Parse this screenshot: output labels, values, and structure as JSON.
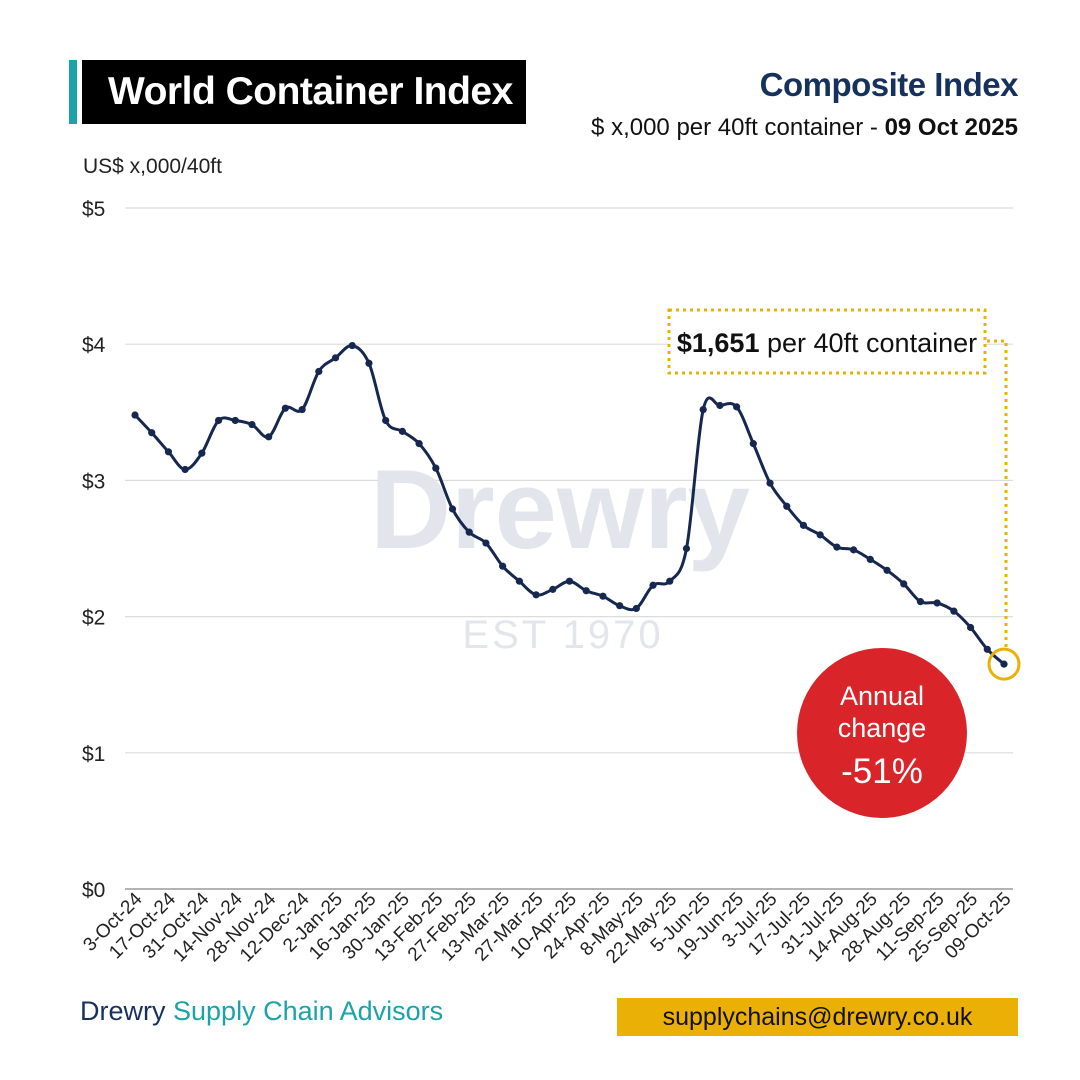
{
  "header": {
    "title": "World Container Index",
    "subtitle_top": "Composite Index",
    "subtitle_bottom_prefix": "$ x,000 per 40ft container - ",
    "subtitle_bottom_date": "09 Oct 2025",
    "accent_color": "#1ba3a8",
    "title_bg_color": "#000000"
  },
  "watermark": {
    "text": "Drewry",
    "sub": "EST 1970"
  },
  "annotations": {
    "callout_value": "$1,651",
    "callout_suffix": " per 40ft container",
    "callout_color": "#ebb006",
    "badge_line1": "Annual",
    "badge_line2": "change",
    "badge_value": "-51%",
    "badge_color": "#d9252a"
  },
  "footer": {
    "brand_part1": "Drewry",
    "brand_part2": "Supply Chain Advisors",
    "email": "supplychains@drewry.co.uk"
  },
  "chart_data": {
    "type": "line",
    "ylabel": "US$ x,000/40ft",
    "ylim": [
      0,
      5
    ],
    "y_ticks": [
      {
        "value": 0,
        "label": "$0"
      },
      {
        "value": 1,
        "label": "$1"
      },
      {
        "value": 2,
        "label": "$2"
      },
      {
        "value": 3,
        "label": "$3"
      },
      {
        "value": 4,
        "label": "$4"
      },
      {
        "value": 5,
        "label": "$5"
      }
    ],
    "grid": true,
    "line_color": "#16284f",
    "x_tick_labels": [
      "3-Oct-24",
      "17-Oct-24",
      "31-Oct-24",
      "14-Nov-24",
      "28-Nov-24",
      "12-Dec-24",
      "2-Jan-25",
      "16-Jan-25",
      "30-Jan-25",
      "13-Feb-25",
      "27-Feb-25",
      "13-Mar-25",
      "27-Mar-25",
      "10-Apr-25",
      "24-Apr-25",
      "8-May-25",
      "22-May-25",
      "5-Jun-25",
      "19-Jun-25",
      "3-Jul-25",
      "17-Jul-25",
      "31-Jul-25",
      "14-Aug-25",
      "28-Aug-25",
      "11-Sep-25",
      "25-Sep-25",
      "09-Oct-25"
    ],
    "series": [
      {
        "values": [
          3.48,
          3.35,
          3.21,
          3.08,
          3.2,
          3.44,
          3.44,
          3.41,
          3.32,
          3.53,
          3.52,
          3.8,
          3.9,
          3.99,
          3.86,
          3.44,
          3.36,
          3.27,
          3.09,
          2.79,
          2.62,
          2.54,
          2.37,
          2.26,
          2.16,
          2.2,
          2.26,
          2.19,
          2.15,
          2.08,
          2.06,
          2.23,
          2.26,
          2.5,
          3.52,
          3.55,
          3.54,
          3.27,
          2.98,
          2.81,
          2.67,
          2.6,
          2.51,
          2.49,
          2.42,
          2.34,
          2.24,
          2.11,
          2.1,
          2.04,
          1.92,
          1.76,
          1.651
        ]
      }
    ]
  }
}
